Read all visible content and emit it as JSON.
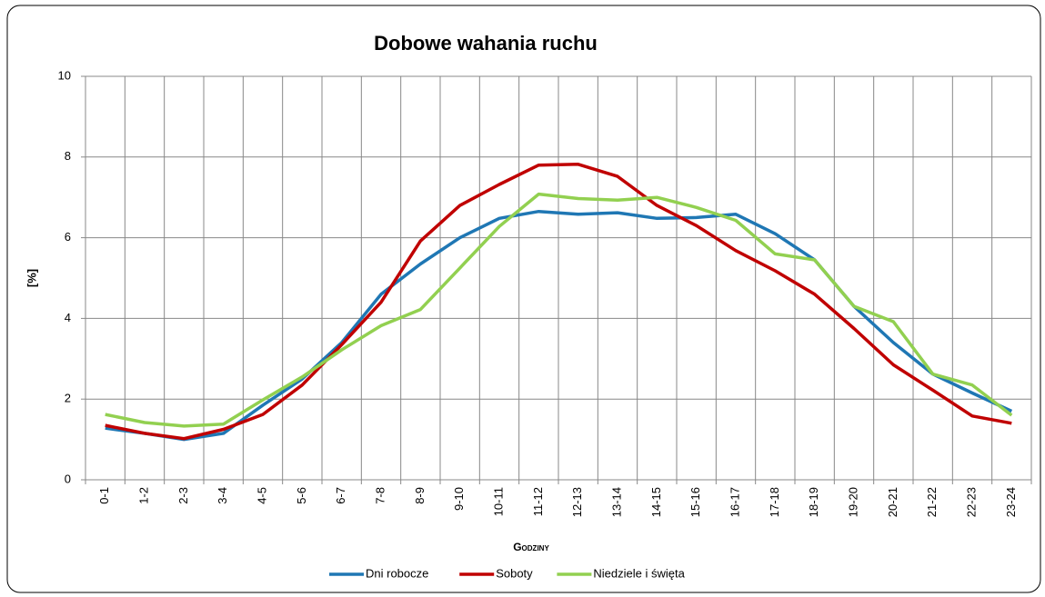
{
  "chart_data": {
    "type": "line",
    "title": "Dobowe wahania ruchu",
    "x_label": "Godziny",
    "y_label": "[%]",
    "categories": [
      "0-1",
      "1-2",
      "2-3",
      "3-4",
      "4-5",
      "5-6",
      "6-7",
      "7-8",
      "8-9",
      "9-10",
      "10-11",
      "11-12",
      "12-13",
      "13-14",
      "14-15",
      "15-16",
      "16-17",
      "17-18",
      "18-19",
      "19-20",
      "20-21",
      "21-22",
      "22-23",
      "23-24"
    ],
    "series": [
      {
        "name": "Dni robocze",
        "color": "#1f77b4",
        "values": [
          1.28,
          1.15,
          1.0,
          1.15,
          1.85,
          2.5,
          3.4,
          4.6,
          5.35,
          6.0,
          6.48,
          6.65,
          6.58,
          6.62,
          6.48,
          6.5,
          6.58,
          6.1,
          5.45,
          4.3,
          3.4,
          2.62,
          2.15,
          1.7
        ]
      },
      {
        "name": "Soboty",
        "color": "#c00000",
        "values": [
          1.35,
          1.15,
          1.02,
          1.25,
          1.62,
          2.35,
          3.35,
          4.4,
          5.92,
          6.8,
          7.32,
          7.8,
          7.82,
          7.52,
          6.8,
          6.3,
          5.68,
          5.18,
          4.6,
          3.75,
          2.85,
          2.22,
          1.58,
          1.4
        ]
      },
      {
        "name": "Niedziele i święta",
        "color": "#92d050",
        "values": [
          1.62,
          1.42,
          1.33,
          1.38,
          1.98,
          2.55,
          3.22,
          3.82,
          4.22,
          5.25,
          6.28,
          7.08,
          6.97,
          6.93,
          7.0,
          6.75,
          6.43,
          5.6,
          5.45,
          4.3,
          3.92,
          2.62,
          2.35,
          1.6
        ]
      }
    ],
    "ylim": [
      0,
      10
    ],
    "yticks": [
      0,
      2,
      4,
      6,
      8,
      10
    ],
    "grid": true,
    "legend": "bottom"
  }
}
